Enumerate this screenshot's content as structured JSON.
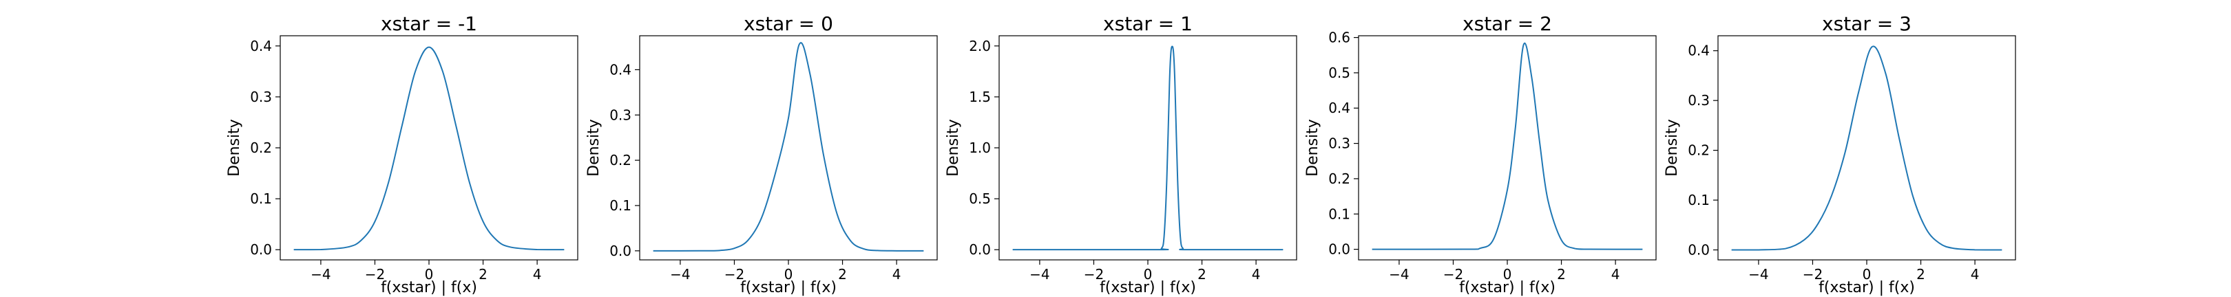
{
  "figure": {
    "background": "#ffffff",
    "line_color": "#1f77b4",
    "frame_color": "#000000"
  },
  "chart_data": [
    {
      "type": "line",
      "title": "xstar = -1",
      "xlabel": "f(xstar) | f(x)",
      "ylabel": "Density",
      "xlim": [
        -5.5,
        5.5
      ],
      "ylim": [
        -0.02,
        0.42
      ],
      "xticks": [
        {
          "value": -4,
          "label": "−4"
        },
        {
          "value": -2,
          "label": "−2"
        },
        {
          "value": 0,
          "label": "0"
        },
        {
          "value": 2,
          "label": "2"
        },
        {
          "value": 4,
          "label": "4"
        }
      ],
      "yticks": [
        {
          "value": 0.0,
          "label": "0.0"
        },
        {
          "value": 0.1,
          "label": "0.1"
        },
        {
          "value": 0.2,
          "label": "0.2"
        },
        {
          "value": 0.3,
          "label": "0.3"
        },
        {
          "value": 0.4,
          "label": "0.4"
        }
      ],
      "grid": false,
      "series": [
        {
          "x": [
            -5,
            -4,
            -3,
            -2.5,
            -2,
            -1.5,
            -1,
            -0.5,
            0,
            0.5,
            1,
            1.5,
            2,
            2.5,
            3,
            4,
            5
          ],
          "y": [
            0.0,
            0.0002,
            0.0052,
            0.0188,
            0.0553,
            0.1315,
            0.243,
            0.3509,
            0.3975,
            0.3509,
            0.243,
            0.1315,
            0.0553,
            0.0188,
            0.0052,
            0.0002,
            0.0
          ]
        }
      ]
    },
    {
      "type": "line",
      "title": "xstar = 0",
      "xlabel": "f(xstar) | f(x)",
      "ylabel": "Density",
      "xlim": [
        -5.5,
        5.5
      ],
      "ylim": [
        -0.02,
        0.475
      ],
      "xticks": [
        {
          "value": -4,
          "label": "−4"
        },
        {
          "value": -2,
          "label": "−2"
        },
        {
          "value": 0,
          "label": "0"
        },
        {
          "value": 2,
          "label": "2"
        },
        {
          "value": 4,
          "label": "4"
        }
      ],
      "yticks": [
        {
          "value": 0.0,
          "label": "0.0"
        },
        {
          "value": 0.1,
          "label": "0.1"
        },
        {
          "value": 0.2,
          "label": "0.2"
        },
        {
          "value": 0.3,
          "label": "0.3"
        },
        {
          "value": 0.4,
          "label": "0.4"
        }
      ],
      "grid": false,
      "series": [
        {
          "x": [
            -5,
            -3,
            -2.5,
            -2,
            -1.5,
            -1,
            -0.5,
            0,
            0.4,
            0.8,
            1.3,
            1.8,
            2.3,
            2.8,
            3.3,
            4,
            5
          ],
          "y": [
            0.0,
            0.0001,
            0.001,
            0.0055,
            0.023,
            0.072,
            0.1676,
            0.293,
            0.456,
            0.39,
            0.211,
            0.081,
            0.022,
            0.004,
            0.0006,
            0.0,
            0.0
          ]
        }
      ]
    },
    {
      "type": "line",
      "title": "xstar = 1",
      "xlabel": "f(xstar) | f(x)",
      "ylabel": "Density",
      "xlim": [
        -5.5,
        5.5
      ],
      "ylim": [
        -0.1,
        2.1
      ],
      "xticks": [
        {
          "value": -4,
          "label": "−4"
        },
        {
          "value": -2,
          "label": "−2"
        },
        {
          "value": 0,
          "label": "0"
        },
        {
          "value": 2,
          "label": "2"
        },
        {
          "value": 4,
          "label": "4"
        }
      ],
      "yticks": [
        {
          "value": 0.0,
          "label": "0.0"
        },
        {
          "value": 0.5,
          "label": "0.5"
        },
        {
          "value": 1.0,
          "label": "1.0"
        },
        {
          "value": 1.5,
          "label": "1.5"
        },
        {
          "value": 2.0,
          "label": "2.0"
        }
      ],
      "grid": false,
      "series": [
        {
          "x": [
            -5,
            0.3,
            0.5,
            0.6,
            0.7,
            0.8,
            0.85,
            0.9,
            0.95,
            1.0,
            1.1,
            1.2,
            1.3,
            1.5,
            5
          ],
          "y": [
            0.0,
            0.0,
            0.011,
            0.13,
            0.69,
            1.64,
            1.93,
            1.995,
            1.93,
            1.64,
            0.69,
            0.13,
            0.011,
            0.0,
            0.0
          ]
        }
      ]
    },
    {
      "type": "line",
      "title": "xstar = 2",
      "xlabel": "f(xstar) | f(x)",
      "ylabel": "Density",
      "xlim": [
        -5.5,
        5.5
      ],
      "ylim": [
        -0.03,
        0.605
      ],
      "xticks": [
        {
          "value": -4,
          "label": "−4"
        },
        {
          "value": -2,
          "label": "−2"
        },
        {
          "value": 0,
          "label": "0"
        },
        {
          "value": 2,
          "label": "2"
        },
        {
          "value": 4,
          "label": "4"
        }
      ],
      "yticks": [
        {
          "value": 0.0,
          "label": "0.0"
        },
        {
          "value": 0.1,
          "label": "0.1"
        },
        {
          "value": 0.2,
          "label": "0.2"
        },
        {
          "value": 0.3,
          "label": "0.3"
        },
        {
          "value": 0.4,
          "label": "0.4"
        },
        {
          "value": 0.5,
          "label": "0.5"
        },
        {
          "value": 0.6,
          "label": "0.6"
        }
      ],
      "grid": false,
      "series": [
        {
          "x": [
            -5,
            -1.5,
            -1,
            -0.5,
            0,
            0.3,
            0.6,
            0.9,
            1.2,
            1.5,
            2,
            2.5,
            3,
            5
          ],
          "y": [
            0.0,
            0.0001,
            0.0029,
            0.03,
            0.168,
            0.345,
            0.579,
            0.488,
            0.301,
            0.14,
            0.0263,
            0.002,
            0.0001,
            0.0
          ]
        }
      ]
    },
    {
      "type": "line",
      "title": "xstar = 3",
      "xlabel": "f(xstar) | f(x)",
      "ylabel": "Density",
      "xlim": [
        -5.5,
        5.5
      ],
      "ylim": [
        -0.02,
        0.43
      ],
      "xticks": [
        {
          "value": -4,
          "label": "−4"
        },
        {
          "value": -2,
          "label": "−2"
        },
        {
          "value": 0,
          "label": "0"
        },
        {
          "value": 2,
          "label": "2"
        },
        {
          "value": 4,
          "label": "4"
        }
      ],
      "yticks": [
        {
          "value": 0.0,
          "label": "0.0"
        },
        {
          "value": 0.1,
          "label": "0.1"
        },
        {
          "value": 0.2,
          "label": "0.2"
        },
        {
          "value": 0.3,
          "label": "0.3"
        },
        {
          "value": 0.4,
          "label": "0.4"
        }
      ],
      "grid": false,
      "series": [
        {
          "x": [
            -5,
            -4,
            -3,
            -2.3,
            -1.8,
            -1.3,
            -0.8,
            -0.3,
            0.2,
            0.7,
            1.2,
            1.7,
            2.2,
            2.7,
            3.2,
            4,
            5
          ],
          "y": [
            0.0,
            0.0001,
            0.0027,
            0.0207,
            0.0527,
            0.109,
            0.196,
            0.317,
            0.408,
            0.354,
            0.224,
            0.109,
            0.042,
            0.013,
            0.0033,
            0.0002,
            0.0
          ]
        }
      ]
    }
  ]
}
